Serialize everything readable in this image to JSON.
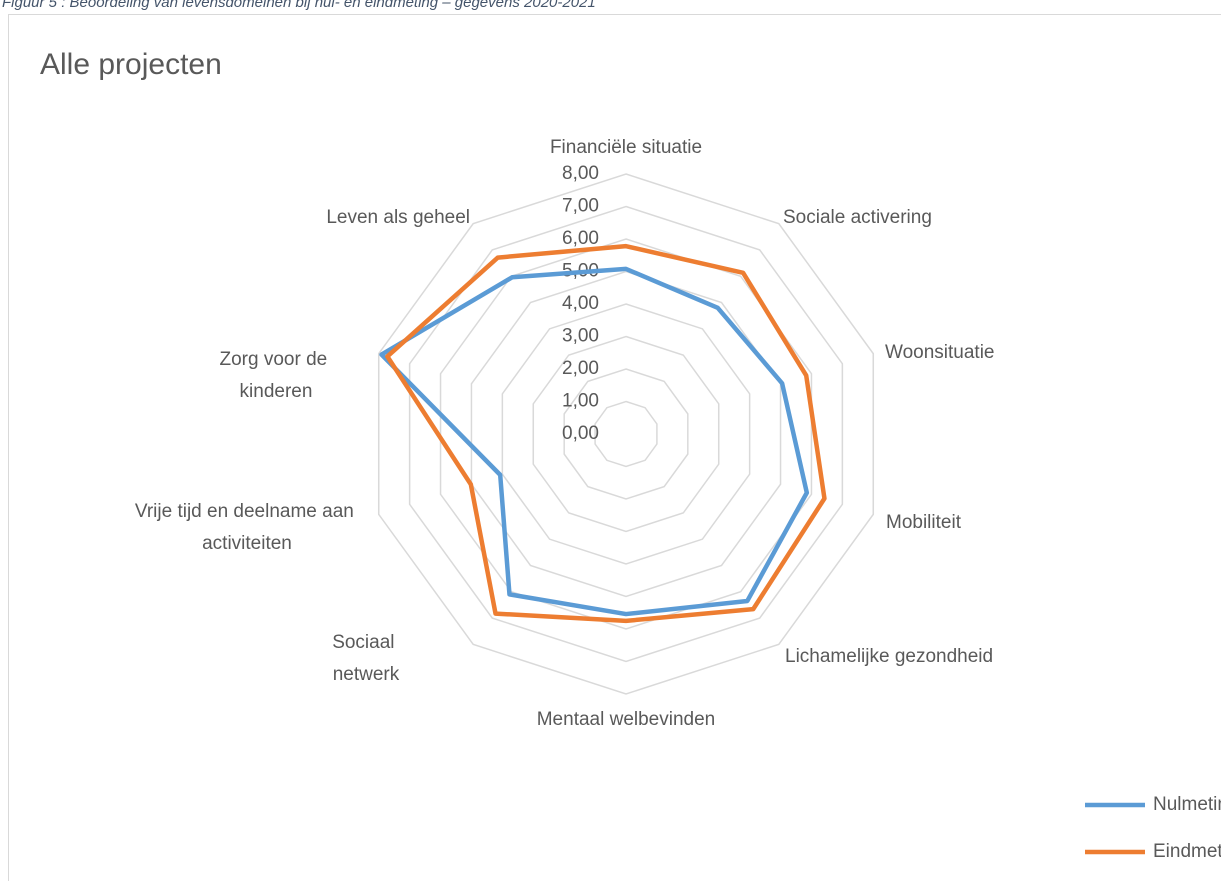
{
  "caption": "Figuur 5 : Beoordeling van levensdomeinen bij nul- en eindmeting – gegevens 2020-2021",
  "chart_data": {
    "type": "radar",
    "title": "Alle projecten",
    "categories": [
      "Financiële situatie",
      "Sociale activering",
      "Woonsituatie",
      "Mobiliteit",
      "Lichamelijke gezondheid",
      "Mentaal welbevinden",
      "Sociaal netwerk",
      "Vrije tijd en deelname aan activiteiten",
      "Zorg voor de kinderen",
      "Leven als geheel"
    ],
    "series": [
      {
        "name": "Nulmeting",
        "color": "#5b9bd5",
        "values": [
          5.08,
          4.8,
          5.05,
          5.85,
          6.35,
          5.54,
          6.1,
          4.07,
          7.91,
          5.96
        ]
      },
      {
        "name": "Eindmeting",
        "color": "#ed7d31",
        "values": [
          5.78,
          6.13,
          5.83,
          6.42,
          6.66,
          5.75,
          6.83,
          5.02,
          7.72,
          6.71
        ]
      }
    ],
    "ylim": [
      0,
      8
    ],
    "yticks": [
      {
        "value": 0,
        "label": "0,00"
      },
      {
        "value": 1,
        "label": "1,00"
      },
      {
        "value": 2,
        "label": "2,00"
      },
      {
        "value": 3,
        "label": "3,00"
      },
      {
        "value": 4,
        "label": "4,00"
      },
      {
        "value": 5,
        "label": "5,00"
      },
      {
        "value": 6,
        "label": "6,00"
      },
      {
        "value": 7,
        "label": "7,00"
      },
      {
        "value": 8,
        "label": "8,00"
      }
    ],
    "grid": true,
    "legend": "bottom-right"
  }
}
